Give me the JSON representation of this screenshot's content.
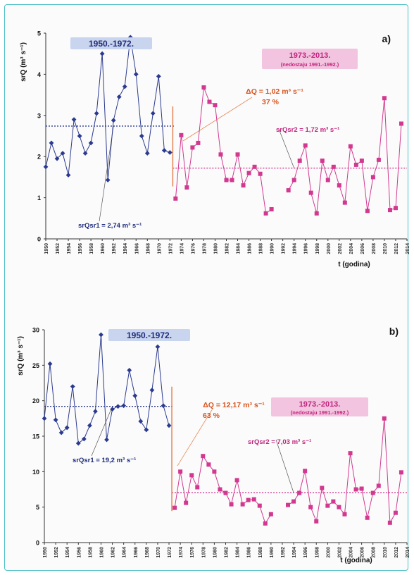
{
  "colors": {
    "frame": "#4ec0c7",
    "series_before": "#2b3a8f",
    "series_after": "#d2388f",
    "change_text": "#d9531e",
    "change_line": "#e88a5a",
    "label_before_bg": "#c9d4ee",
    "label_after_bg": "#f2c4df"
  },
  "chart_data": [
    {
      "type": "line",
      "panel_label": "a)",
      "ylabel": "srQ (m³ s⁻¹)",
      "xlabel": "t (godina)",
      "ylim": [
        0,
        5
      ],
      "yticks": [
        0,
        1,
        2,
        3,
        4,
        5
      ],
      "xlim": [
        1950,
        2014
      ],
      "xticks": [
        "1950",
        "1952",
        "1954",
        "1956",
        "1958",
        "1960",
        "1962",
        "1964",
        "1966",
        "1968",
        "1970",
        "1972",
        "1974",
        "1976",
        "1978",
        "1980",
        "1982",
        "1984",
        "1986",
        "1988",
        "1990",
        "1992",
        "1994",
        "1996",
        "1998",
        "2000",
        "2002",
        "2004",
        "2006",
        "2008",
        "2010",
        "2012",
        "2014"
      ],
      "grid": false,
      "period1_label": "1950.-1972.",
      "period2_label": "1973.-2013.",
      "period2_note": "(nedostaju 1991.-1992.)",
      "change_line1": "ΔQ = 1,02 m³ s⁻¹",
      "change_line2": "37 %",
      "mean1_label": "srQsr1 = 2,74 m³ s⁻¹",
      "mean2_label": "srQsr2 = 1,72 m³ s⁻¹",
      "mean1": 2.74,
      "mean2": 1.72,
      "series": [
        {
          "x": [
            1950,
            1951,
            1952,
            1953,
            1954,
            1955,
            1956,
            1957,
            1958,
            1959,
            1960,
            1961,
            1962,
            1963,
            1964,
            1965,
            1966,
            1967,
            1968,
            1969,
            1970,
            1971,
            1972
          ],
          "y": [
            1.75,
            2.33,
            1.95,
            2.08,
            1.55,
            2.9,
            2.5,
            2.08,
            2.33,
            3.05,
            4.5,
            1.43,
            2.88,
            3.45,
            3.7,
            4.9,
            4.0,
            2.5,
            2.08,
            3.05,
            3.95,
            2.15,
            2.1
          ]
        },
        {
          "x": [
            1973,
            1974,
            1975,
            1976,
            1977,
            1978,
            1979,
            1980,
            1981,
            1982,
            1983,
            1984,
            1985,
            1986,
            1987,
            1988,
            1989,
            1990,
            1993,
            1994,
            1995,
            1996,
            1997,
            1998,
            1999,
            2000,
            2001,
            2002,
            2003,
            2004,
            2005,
            2006,
            2007,
            2008,
            2009,
            2010,
            2011,
            2012,
            2013
          ],
          "y": [
            0.98,
            2.52,
            1.25,
            2.22,
            2.33,
            3.68,
            3.33,
            3.25,
            2.05,
            1.43,
            1.43,
            2.05,
            1.3,
            1.6,
            1.75,
            1.58,
            0.62,
            0.72,
            1.18,
            1.43,
            1.9,
            2.27,
            1.12,
            0.62,
            1.9,
            1.43,
            1.75,
            1.3,
            0.88,
            2.25,
            1.8,
            1.9,
            0.68,
            1.5,
            1.92,
            3.42,
            0.7,
            0.75,
            2.8
          ]
        }
      ]
    },
    {
      "type": "line",
      "panel_label": "b)",
      "ylabel": "srQ (m³ s⁻¹)",
      "xlabel": "t (godina)",
      "ylim": [
        0,
        30
      ],
      "yticks": [
        0,
        5,
        10,
        15,
        20,
        25,
        30
      ],
      "xlim": [
        1950,
        2014
      ],
      "xticks": [
        "1950",
        "1952",
        "1954",
        "1956",
        "1958",
        "1960",
        "1962",
        "1964",
        "1966",
        "1968",
        "1970",
        "1972",
        "1974",
        "1976",
        "1978",
        "1980",
        "1982",
        "1984",
        "1986",
        "1988",
        "1990",
        "1992",
        "1994",
        "1996",
        "1998",
        "2000",
        "2002",
        "2004",
        "2006",
        "2008",
        "2010",
        "2012",
        "2014"
      ],
      "grid": false,
      "period1_label": "1950.-1972.",
      "period2_label": "1973.-2013.",
      "period2_note": "(nedostaju 1991.-1992.)",
      "change_line1": "ΔQ = 12,17 m³ s⁻¹",
      "change_line2": "63 %",
      "mean1_label": "srQsr1 = 19,2 m³ s⁻¹",
      "mean2_label": "srQsr2 = 7,03 m³ s⁻¹",
      "mean1": 19.2,
      "mean2": 7.03,
      "series": [
        {
          "x": [
            1950,
            1951,
            1952,
            1953,
            1954,
            1955,
            1956,
            1957,
            1958,
            1959,
            1960,
            1961,
            1962,
            1963,
            1964,
            1965,
            1966,
            1967,
            1968,
            1969,
            1970,
            1971,
            1972
          ],
          "y": [
            17.5,
            25.2,
            17.3,
            15.5,
            16.2,
            22.0,
            14.0,
            14.6,
            16.5,
            18.5,
            29.3,
            14.5,
            18.8,
            19.2,
            19.3,
            24.3,
            20.7,
            17.1,
            15.9,
            21.5,
            27.6,
            19.3,
            16.5
          ]
        },
        {
          "x": [
            1973,
            1974,
            1975,
            1976,
            1977,
            1978,
            1979,
            1980,
            1981,
            1982,
            1983,
            1984,
            1985,
            1986,
            1987,
            1988,
            1989,
            1990,
            1993,
            1994,
            1995,
            1996,
            1997,
            1998,
            1999,
            2000,
            2001,
            2002,
            2003,
            2004,
            2005,
            2006,
            2007,
            2008,
            2009,
            2010,
            2011,
            2012,
            2013
          ],
          "y": [
            4.9,
            10.0,
            5.6,
            9.5,
            7.8,
            12.2,
            11.0,
            10.0,
            7.5,
            7.0,
            5.4,
            8.8,
            5.4,
            6.0,
            6.1,
            5.2,
            2.7,
            4.0,
            5.3,
            5.8,
            7.0,
            10.1,
            5.0,
            3.0,
            7.7,
            5.2,
            5.8,
            5.0,
            4.0,
            12.6,
            7.5,
            7.6,
            3.5,
            7.0,
            8.0,
            17.5,
            2.8,
            4.2,
            9.9
          ]
        }
      ]
    }
  ]
}
